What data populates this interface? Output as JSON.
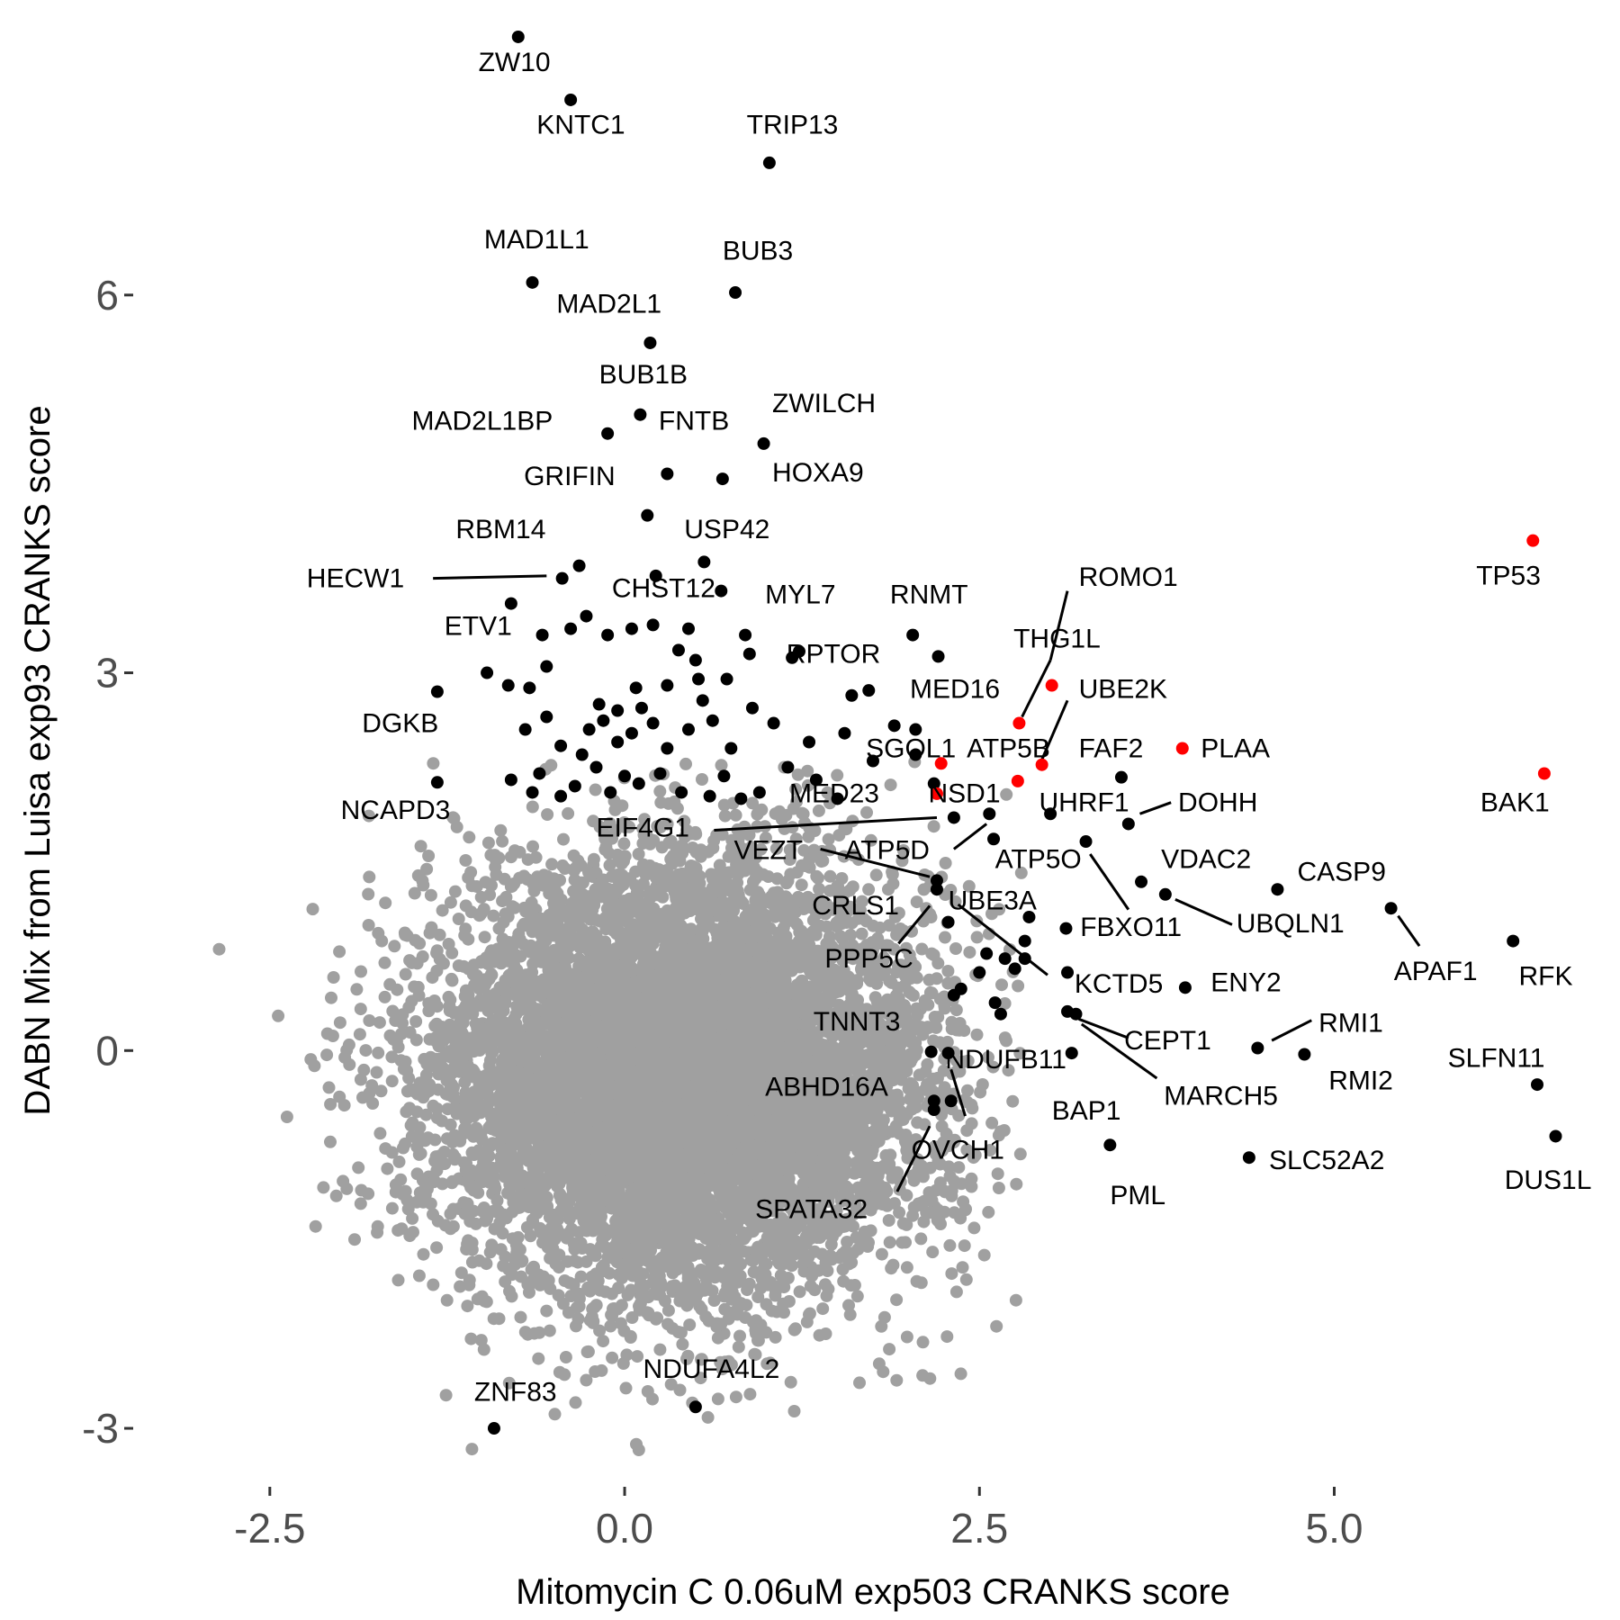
{
  "chart_data": {
    "type": "scatter",
    "title": "",
    "xlabel": "Mitomycin C 0.06uM exp503 CRANKS score",
    "ylabel": "DABN Mix from Luisa exp93 CRANKS score",
    "xlim": [
      -3.45,
      6.95
    ],
    "ylim": [
      -3.45,
      8.2
    ],
    "xticks": [
      -2.5,
      0.0,
      2.5,
      5.0
    ],
    "xtick_labels": [
      "-2.5",
      "0.0",
      "2.5",
      "5.0"
    ],
    "yticks": [
      -3,
      0,
      3,
      6
    ],
    "ytick_labels": [
      "-3",
      "0",
      "3",
      "6"
    ],
    "grid": false,
    "legend": "none",
    "colors": {
      "background": "#cccccc",
      "hit": "#000000",
      "highlight": "#ff0000",
      "axis_text": "#4d4d4d"
    },
    "background_cloud": {
      "description_units": "data",
      "center": [
        0.4,
        -0.2
      ],
      "sd": [
        0.85,
        0.85
      ],
      "count": 9000,
      "color": "#a0a0a0"
    },
    "series": [
      {
        "color": "#000000",
        "points": [
          {
            "x": -0.75,
            "y": 8.05,
            "label": "ZW10"
          },
          {
            "x": -0.38,
            "y": 7.55,
            "label": "KNTC1"
          },
          {
            "x": 1.02,
            "y": 7.05,
            "label": "TRIP13"
          },
          {
            "x": -0.65,
            "y": 6.1,
            "label": "MAD1L1"
          },
          {
            "x": 0.78,
            "y": 6.02,
            "label": "BUB3"
          },
          {
            "x": 0.18,
            "y": 5.62,
            "label": "MAD2L1"
          },
          {
            "x": 0.11,
            "y": 5.05,
            "label": "BUB1B"
          },
          {
            "x": -0.12,
            "y": 4.9,
            "label": "MAD2L1BP"
          },
          {
            "x": 0.98,
            "y": 4.82,
            "label": "ZWILCH"
          },
          {
            "x": 0.3,
            "y": 4.58,
            "label": "FNTB"
          },
          {
            "x": 0.69,
            "y": 4.54,
            "label": "HOXA9"
          },
          {
            "x": 0.16,
            "y": 4.25,
            "label": "GRIFIN"
          },
          {
            "x": 0.56,
            "y": 3.88,
            "label": "USP42"
          },
          {
            "x": -0.32,
            "y": 3.85,
            "label": "RBM14"
          },
          {
            "x": -0.44,
            "y": 3.75,
            "label": "HECW1"
          },
          {
            "x": 0.22,
            "y": 3.77,
            "label": "CHST12"
          },
          {
            "x": -0.8,
            "y": 3.55,
            "label": "ETV1"
          },
          {
            "x": 0.68,
            "y": 3.65,
            "label": "MYL7"
          },
          {
            "x": 2.03,
            "y": 3.3,
            "label": "RNMT"
          },
          {
            "x": 1.23,
            "y": 3.17,
            "label": "RPTOR"
          },
          {
            "x": -1.32,
            "y": 2.85,
            "label": "DGKB"
          },
          {
            "x": -1.32,
            "y": 2.13,
            "label": "NCAPD3"
          },
          {
            "x": 2.21,
            "y": 3.13
          },
          {
            "x": 1.6,
            "y": 2.82
          },
          {
            "x": 1.72,
            "y": 2.86
          },
          {
            "x": 3.5,
            "y": 2.17,
            "label": "FAF2"
          },
          {
            "x": 3.55,
            "y": 1.8,
            "label": "DOHH"
          },
          {
            "x": 3.0,
            "y": 1.88,
            "label": "UHRF1"
          },
          {
            "x": 2.32,
            "y": 1.85,
            "label": "MED23"
          },
          {
            "x": 2.57,
            "y": 1.88,
            "label": "NSD1"
          },
          {
            "x": 3.25,
            "y": 1.66,
            "label": "ATP5O"
          },
          {
            "x": 3.64,
            "y": 1.34,
            "label": "VDAC2"
          },
          {
            "x": 3.81,
            "y": 1.24,
            "label": "UBQLN1"
          },
          {
            "x": 4.6,
            "y": 1.28,
            "label": "CASP9"
          },
          {
            "x": 5.4,
            "y": 1.13,
            "label": "APAF1"
          },
          {
            "x": 6.26,
            "y": 0.87,
            "label": "RFK"
          },
          {
            "x": 2.2,
            "y": 1.35,
            "label": "VEZT"
          },
          {
            "x": 2.2,
            "y": 1.28,
            "label": "CRLS1"
          },
          {
            "x": 2.28,
            "y": 1.02
          },
          {
            "x": 2.85,
            "y": 1.06
          },
          {
            "x": 3.11,
            "y": 0.97
          },
          {
            "x": 2.82,
            "y": 0.87
          },
          {
            "x": 3.12,
            "y": 0.62,
            "label": "KCTD5"
          },
          {
            "x": 3.95,
            "y": 0.5,
            "label": "ENY2"
          },
          {
            "x": 3.12,
            "y": 0.31,
            "label": "CEPT1"
          },
          {
            "x": 3.18,
            "y": 0.29,
            "label": "MARCH5"
          },
          {
            "x": 4.46,
            "y": 0.02,
            "label": "RMI1"
          },
          {
            "x": 4.79,
            "y": -0.03,
            "label": "RMI2"
          },
          {
            "x": 6.43,
            "y": -0.27,
            "label": "SLFN11"
          },
          {
            "x": 6.56,
            "y": -0.68,
            "label": "DUS1L"
          },
          {
            "x": 3.15,
            "y": -0.02,
            "label": "BAP1"
          },
          {
            "x": 3.42,
            "y": -0.75,
            "label": "PML"
          },
          {
            "x": 4.4,
            "y": -0.85,
            "label": "SLC52A2"
          },
          {
            "x": 2.28,
            "y": -0.02,
            "label": "NDUFB11"
          },
          {
            "x": 2.16,
            "y": -0.01,
            "label": "TNNT3"
          },
          {
            "x": 2.18,
            "y": -0.4,
            "label": "ABHD16A"
          },
          {
            "x": 2.18,
            "y": -0.47,
            "label": "SPATA32"
          },
          {
            "x": 2.3,
            "y": -0.4,
            "label": "OVCH1"
          },
          {
            "x": 2.37,
            "y": 0.49
          },
          {
            "x": 2.32,
            "y": 0.44
          },
          {
            "x": 2.5,
            "y": 0.62
          },
          {
            "x": 2.75,
            "y": 0.65
          },
          {
            "x": 2.68,
            "y": 0.73
          },
          {
            "x": 2.55,
            "y": 0.77
          },
          {
            "x": 2.82,
            "y": 0.73
          },
          {
            "x": 2.61,
            "y": 0.38
          },
          {
            "x": 2.65,
            "y": 0.29
          },
          {
            "x": 0.5,
            "y": -2.83,
            "label": "NDUFA4L2"
          },
          {
            "x": -0.92,
            "y": -3.0,
            "label": "ZNF83"
          },
          {
            "x": -0.97,
            "y": 3.0
          },
          {
            "x": -0.82,
            "y": 2.9
          },
          {
            "x": -0.67,
            "y": 2.88
          },
          {
            "x": -0.55,
            "y": 3.05
          },
          {
            "x": -0.58,
            "y": 3.3
          },
          {
            "x": -0.38,
            "y": 3.35
          },
          {
            "x": -0.27,
            "y": 3.45
          },
          {
            "x": -0.12,
            "y": 3.3
          },
          {
            "x": 0.05,
            "y": 3.35
          },
          {
            "x": 0.2,
            "y": 3.38
          },
          {
            "x": 0.45,
            "y": 3.35
          },
          {
            "x": 0.38,
            "y": 3.18
          },
          {
            "x": 0.5,
            "y": 3.1
          },
          {
            "x": 0.88,
            "y": 3.15
          },
          {
            "x": 0.85,
            "y": 3.3
          },
          {
            "x": 1.18,
            "y": 3.12
          },
          {
            "x": -0.8,
            "y": 2.15
          },
          {
            "x": -0.7,
            "y": 2.55
          },
          {
            "x": -0.55,
            "y": 2.65
          },
          {
            "x": -0.6,
            "y": 2.2
          },
          {
            "x": -0.45,
            "y": 2.42
          },
          {
            "x": -0.3,
            "y": 2.35
          },
          {
            "x": -0.25,
            "y": 2.55
          },
          {
            "x": -0.15,
            "y": 2.62
          },
          {
            "x": -0.05,
            "y": 2.7
          },
          {
            "x": 0.05,
            "y": 2.52
          },
          {
            "x": 0.12,
            "y": 2.72
          },
          {
            "x": 0.2,
            "y": 2.6
          },
          {
            "x": 0.3,
            "y": 2.4
          },
          {
            "x": 0.45,
            "y": 2.55
          },
          {
            "x": 0.55,
            "y": 2.78
          },
          {
            "x": 0.62,
            "y": 2.62
          },
          {
            "x": 0.75,
            "y": 2.4
          },
          {
            "x": 0.9,
            "y": 2.72
          },
          {
            "x": 1.05,
            "y": 2.6
          },
          {
            "x": 1.3,
            "y": 2.45
          },
          {
            "x": 1.55,
            "y": 2.52
          },
          {
            "x": 1.75,
            "y": 2.3
          },
          {
            "x": 1.9,
            "y": 2.58
          },
          {
            "x": 2.05,
            "y": 2.55
          },
          {
            "x": -0.35,
            "y": 2.1
          },
          {
            "x": -0.2,
            "y": 2.25
          },
          {
            "x": -0.1,
            "y": 2.05
          },
          {
            "x": 0.0,
            "y": 2.18
          },
          {
            "x": 0.1,
            "y": 2.12
          },
          {
            "x": 0.25,
            "y": 2.2
          },
          {
            "x": 0.4,
            "y": 2.05
          },
          {
            "x": 0.6,
            "y": 2.02
          },
          {
            "x": 0.7,
            "y": 2.18
          },
          {
            "x": 0.95,
            "y": 2.05
          },
          {
            "x": 1.15,
            "y": 2.25
          },
          {
            "x": 1.35,
            "y": 2.15
          },
          {
            "x": -0.05,
            "y": 2.45
          },
          {
            "x": -0.18,
            "y": 2.75
          },
          {
            "x": 0.3,
            "y": 2.9
          },
          {
            "x": 0.08,
            "y": 2.88
          },
          {
            "x": 0.52,
            "y": 2.95
          },
          {
            "x": 0.72,
            "y": 2.95
          },
          {
            "x": -0.45,
            "y": 2.02
          },
          {
            "x": -0.65,
            "y": 2.05
          },
          {
            "x": 0.82,
            "y": 2.0
          },
          {
            "x": 1.5,
            "y": 2.0
          },
          {
            "x": 2.18,
            "y": 2.12
          },
          {
            "x": 2.6,
            "y": 1.68
          },
          {
            "x": 2.05,
            "y": 2.35
          }
        ]
      },
      {
        "color": "#ff0000",
        "points": [
          {
            "x": 6.4,
            "y": 4.05,
            "label": "TP53"
          },
          {
            "x": 6.48,
            "y": 2.2,
            "label": "BAK1"
          },
          {
            "x": 3.93,
            "y": 2.4,
            "label": "PLAA"
          },
          {
            "x": 3.01,
            "y": 2.9,
            "label": "ROMO1"
          },
          {
            "x": 2.78,
            "y": 2.6,
            "label": "THG1L"
          },
          {
            "x": 2.94,
            "y": 2.27,
            "label": "UBE2K"
          },
          {
            "x": 2.23,
            "y": 2.28,
            "label": "SGOL1"
          },
          {
            "x": 2.77,
            "y": 2.14,
            "label": "MED16"
          },
          {
            "x": 2.2,
            "y": 2.04,
            "label": "ATP5B"
          }
        ]
      }
    ],
    "labels": [
      {
        "text": "ZW10",
        "x": -1.03,
        "y": 7.78
      },
      {
        "text": "KNTC1",
        "x": -0.62,
        "y": 7.28
      },
      {
        "text": "TRIP13",
        "x": 0.86,
        "y": 7.28
      },
      {
        "text": "MAD1L1",
        "x": -0.99,
        "y": 6.37
      },
      {
        "text": "BUB3",
        "x": 0.69,
        "y": 6.28
      },
      {
        "text": "MAD2L1",
        "x": -0.48,
        "y": 5.86
      },
      {
        "text": "BUB1B",
        "x": -0.18,
        "y": 5.3
      },
      {
        "text": "MAD2L1BP",
        "x": -1.5,
        "y": 4.93
      },
      {
        "text": "FNTB",
        "x": 0.24,
        "y": 4.93
      },
      {
        "text": "ZWILCH",
        "x": 1.04,
        "y": 5.07
      },
      {
        "text": "HOXA9",
        "x": 1.04,
        "y": 4.52
      },
      {
        "text": "GRIFIN",
        "x": -0.71,
        "y": 4.49
      },
      {
        "text": "USP42",
        "x": 0.42,
        "y": 4.07
      },
      {
        "text": "RBM14",
        "x": -1.19,
        "y": 4.07
      },
      {
        "text": "HECW1",
        "x": -2.24,
        "y": 3.68
      },
      {
        "text": "CHST12",
        "x": -0.09,
        "y": 3.6
      },
      {
        "text": "ETV1",
        "x": -1.27,
        "y": 3.3
      },
      {
        "text": "MYL7",
        "x": 0.99,
        "y": 3.55
      },
      {
        "text": "RNMT",
        "x": 1.87,
        "y": 3.55
      },
      {
        "text": "RPTOR",
        "x": 1.14,
        "y": 3.08
      },
      {
        "text": "MED16",
        "x": 2.01,
        "y": 2.8
      },
      {
        "text": "THG1L",
        "x": 2.74,
        "y": 3.2
      },
      {
        "text": "ROMO1",
        "x": 3.2,
        "y": 3.69
      },
      {
        "text": "UBE2K",
        "x": 3.2,
        "y": 2.8
      },
      {
        "text": "DGKB",
        "x": -1.85,
        "y": 2.53
      },
      {
        "text": "SGOL1",
        "x": 1.7,
        "y": 2.33
      },
      {
        "text": "ATP5B",
        "x": 2.41,
        "y": 2.33
      },
      {
        "text": "FAF2",
        "x": 3.2,
        "y": 2.33
      },
      {
        "text": "PLAA",
        "x": 4.06,
        "y": 2.33
      },
      {
        "text": "TP53",
        "x": 6.0,
        "y": 3.7
      },
      {
        "text": "BAK1",
        "x": 6.03,
        "y": 1.9
      },
      {
        "text": "NCAPD3",
        "x": -2.0,
        "y": 1.84
      },
      {
        "text": "MED23",
        "x": 1.16,
        "y": 1.97
      },
      {
        "text": "NSD1",
        "x": 2.14,
        "y": 1.97
      },
      {
        "text": "UHRF1",
        "x": 2.92,
        "y": 1.9
      },
      {
        "text": "DOHH",
        "x": 3.9,
        "y": 1.9
      },
      {
        "text": "EIF4G1",
        "x": -0.2,
        "y": 1.7
      },
      {
        "text": "ATP5D",
        "x": 1.55,
        "y": 1.52
      },
      {
        "text": "VEZT",
        "x": 0.77,
        "y": 1.52
      },
      {
        "text": "ATP5O",
        "x": 2.61,
        "y": 1.45
      },
      {
        "text": "VDAC2",
        "x": 3.78,
        "y": 1.45
      },
      {
        "text": "CASP9",
        "x": 4.74,
        "y": 1.35
      },
      {
        "text": "CRLS1",
        "x": 1.32,
        "y": 1.08
      },
      {
        "text": "UBE3A",
        "x": 2.28,
        "y": 1.12
      },
      {
        "text": "FBXO11",
        "x": 3.21,
        "y": 0.91
      },
      {
        "text": "UBQLN1",
        "x": 4.31,
        "y": 0.94
      },
      {
        "text": "PPP5C",
        "x": 1.41,
        "y": 0.66
      },
      {
        "text": "APAF1",
        "x": 5.42,
        "y": 0.56
      },
      {
        "text": "RFK",
        "x": 6.3,
        "y": 0.52
      },
      {
        "text": "KCTD5",
        "x": 3.17,
        "y": 0.46
      },
      {
        "text": "ENY2",
        "x": 4.13,
        "y": 0.47
      },
      {
        "text": "TNNT3",
        "x": 1.33,
        "y": 0.16
      },
      {
        "text": "CEPT1",
        "x": 3.52,
        "y": 0.01
      },
      {
        "text": "RMI1",
        "x": 4.89,
        "y": 0.15
      },
      {
        "text": "SLFN11",
        "x": 5.8,
        "y": -0.13
      },
      {
        "text": "NDUFB11",
        "x": 2.26,
        "y": -0.14
      },
      {
        "text": "RMI2",
        "x": 4.96,
        "y": -0.31
      },
      {
        "text": "ABHD16A",
        "x": 0.99,
        "y": -0.36
      },
      {
        "text": "MARCH5",
        "x": 3.8,
        "y": -0.43
      },
      {
        "text": "BAP1",
        "x": 3.01,
        "y": -0.55
      },
      {
        "text": "SLC52A2",
        "x": 4.54,
        "y": -0.94
      },
      {
        "text": "OVCH1",
        "x": 2.02,
        "y": -0.86
      },
      {
        "text": "DUS1L",
        "x": 6.2,
        "y": -1.1
      },
      {
        "text": "PML",
        "x": 3.42,
        "y": -1.22
      },
      {
        "text": "SPATA32",
        "x": 0.92,
        "y": -1.33
      },
      {
        "text": "NDUFA4L2",
        "x": 0.13,
        "y": -2.6
      },
      {
        "text": "ZNF83",
        "x": -1.06,
        "y": -2.78
      }
    ],
    "leader_lines": [
      [
        -1.35,
        3.75,
        -0.55,
        3.77
      ],
      [
        2.8,
        2.65,
        3.0,
        3.1
      ],
      [
        3.0,
        3.1,
        3.12,
        3.65
      ],
      [
        2.94,
        2.31,
        3.12,
        2.78
      ],
      [
        3.63,
        1.88,
        3.85,
        1.97
      ],
      [
        0.63,
        1.75,
        2.2,
        1.85
      ],
      [
        2.32,
        1.6,
        2.55,
        1.8
      ],
      [
        1.38,
        1.6,
        2.15,
        1.38
      ],
      [
        2.35,
        1.16,
        2.98,
        0.6
      ],
      [
        3.28,
        1.56,
        3.55,
        1.12
      ],
      [
        3.88,
        1.2,
        4.28,
        1.0
      ],
      [
        5.45,
        1.07,
        5.6,
        0.83
      ],
      [
        2.15,
        1.15,
        1.93,
        0.85
      ],
      [
        3.2,
        0.25,
        3.55,
        0.1
      ],
      [
        3.22,
        0.21,
        3.75,
        -0.22
      ],
      [
        4.56,
        0.08,
        4.84,
        0.24
      ],
      [
        2.3,
        -0.15,
        2.4,
        -0.52
      ],
      [
        2.15,
        -0.6,
        1.92,
        -1.12
      ]
    ]
  }
}
